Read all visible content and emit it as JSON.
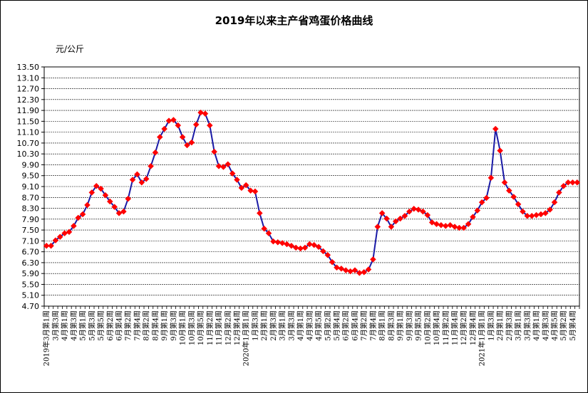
{
  "chart_data": {
    "type": "line",
    "title": "2019年以来主产省鸡蛋价格曲线",
    "ylabel": "元/公斤",
    "xlabel": "",
    "ylim": [
      4.7,
      13.5
    ],
    "yticks": [
      "4.70",
      "5.10",
      "5.50",
      "5.90",
      "6.30",
      "6.70",
      "7.10",
      "7.50",
      "7.90",
      "8.30",
      "8.70",
      "9.10",
      "9.50",
      "9.90",
      "10.30",
      "10.70",
      "11.10",
      "11.50",
      "11.90",
      "12.30",
      "12.70",
      "13.10",
      "13.50"
    ],
    "grid": true,
    "series_color": "#1a1aa6",
    "marker_color": "#ff0000",
    "series": [
      {
        "values": [
          6.92,
          6.92,
          7.12,
          7.25,
          7.38,
          7.43,
          7.65,
          7.95,
          8.08,
          8.42,
          8.88,
          9.12,
          9.02,
          8.78,
          8.55,
          8.35,
          8.12,
          8.18,
          8.65,
          9.35,
          9.55,
          9.25,
          9.38,
          9.85,
          10.35,
          10.92,
          11.22,
          11.52,
          11.55,
          11.35,
          10.92,
          10.62,
          10.72,
          11.38,
          11.82,
          11.78,
          11.35,
          10.38,
          9.85,
          9.82,
          9.92,
          9.58,
          9.35,
          9.05,
          9.15,
          8.95,
          8.92,
          8.12,
          7.55,
          7.38,
          7.08,
          7.05,
          7.02,
          6.98,
          6.92,
          6.85,
          6.82,
          6.85,
          6.98,
          6.95,
          6.88,
          6.72,
          6.58,
          6.32,
          6.12,
          6.08,
          6.02,
          5.98,
          6.02,
          5.92,
          5.95,
          6.05,
          6.42,
          7.62,
          8.12,
          7.92,
          7.62,
          7.82,
          7.92,
          8.02,
          8.18,
          8.28,
          8.25,
          8.18,
          8.05,
          7.78,
          7.72,
          7.68,
          7.65,
          7.68,
          7.62,
          7.58,
          7.58,
          7.72,
          7.98,
          8.22,
          8.52,
          8.68,
          9.42,
          11.22,
          10.42,
          9.25,
          8.95,
          8.72,
          8.45,
          8.18,
          8.02,
          8.02,
          8.05,
          8.08,
          8.12,
          8.25,
          8.52,
          8.88,
          9.12,
          9.25,
          9.25,
          9.25
        ]
      }
    ],
    "x_labels": [
      "2019年3月第1周",
      "3月第3周",
      "4月第1周",
      "4月第3周",
      "5月第1周",
      "5月第3周",
      "5月第5周",
      "6月第2周",
      "6月第4周",
      "7月第2周",
      "7月第4周",
      "8月第2周",
      "8月第4周",
      "9月第1周",
      "9月第3周",
      "10月第1周",
      "10月第3周",
      "10月第5周",
      "11月第2周",
      "11月第4周",
      "12月第2周",
      "12月第4周",
      "2020年1月第1周",
      "1月第3周",
      "2月第1周",
      "2月第3周",
      "3月第1周",
      "3月第3周",
      "4月第1周",
      "4月第3周",
      "4月第5周",
      "5月第2周",
      "5月第4周",
      "6月第2周",
      "6月第4周",
      "7月第2周",
      "7月第4周",
      "8月第1周",
      "8月第3周",
      "9月第1周",
      "9月第3周",
      "9月第5周",
      "10月第2周",
      "10月第4周",
      "11月第2周",
      "11月第4周",
      "12月第2周",
      "12月第4周",
      "2021年1月第1周",
      "1月第3周",
      "2月第1周",
      "2月第3周",
      "3月第1周",
      "3月第3周",
      "4月第1周",
      "4月第3周",
      "4月第5周",
      "5月第2周",
      "5月第4周"
    ]
  }
}
